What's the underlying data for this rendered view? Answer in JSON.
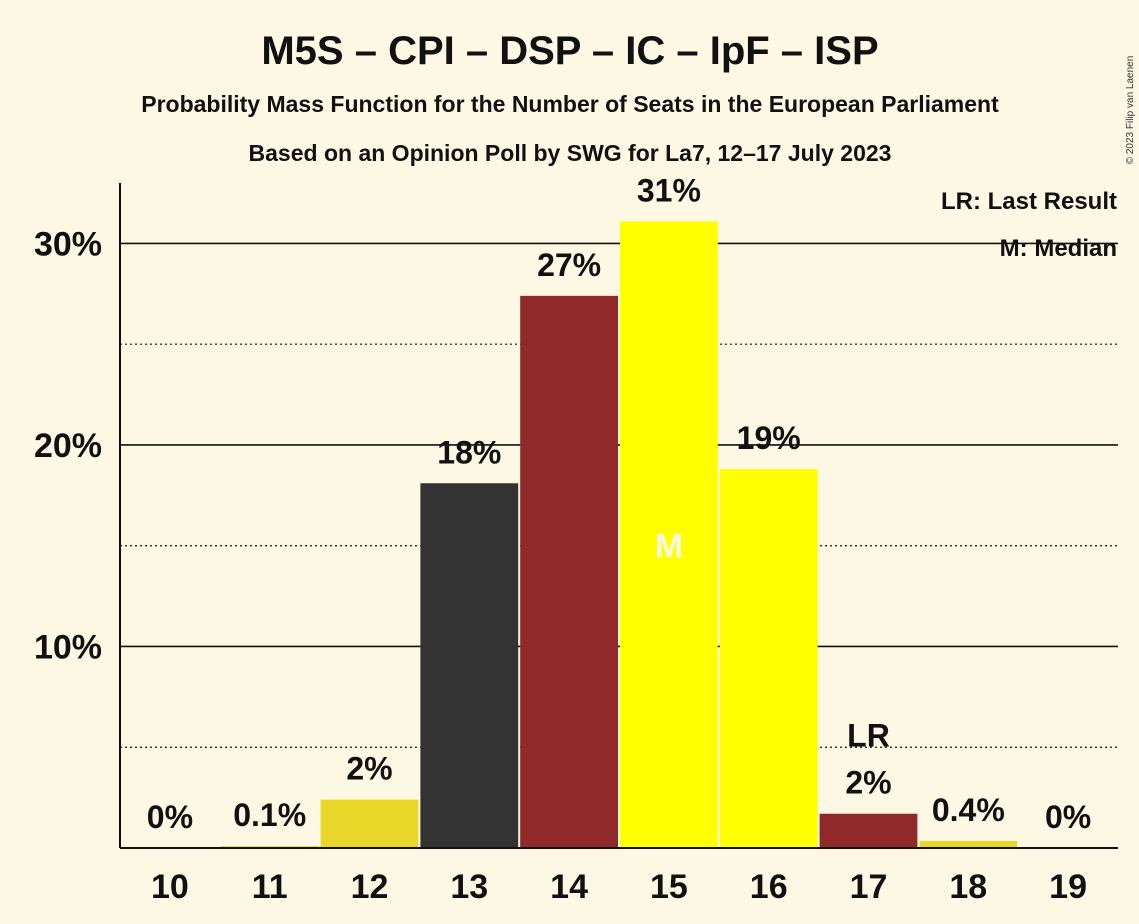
{
  "chart_data": {
    "type": "bar",
    "title": "M5S – CPI – DSP – IC – IpF – ISP",
    "subtitle": "Probability Mass Function for the Number of Seats in the European Parliament",
    "subtitle2": "Based on an Opinion Poll by SWG for La7, 12–17 July 2023",
    "copyright": "© 2023 Filip van Laenen",
    "categories": [
      "10",
      "11",
      "12",
      "13",
      "14",
      "15",
      "16",
      "17",
      "18",
      "19"
    ],
    "values": [
      0,
      0.1,
      2.4,
      18.1,
      27.4,
      31.1,
      18.8,
      1.7,
      0.35,
      0
    ],
    "labels": [
      "0%",
      "0.1%",
      "2%",
      "18%",
      "27%",
      "31%",
      "19%",
      "2%",
      "0.4%",
      "0%"
    ],
    "colors": [
      "#e9d72a",
      "#e9d72a",
      "#e9d72a",
      "#333333",
      "#902a2a",
      "#ffff00",
      "#ffff00",
      "#902a2a",
      "#e9d72a",
      "#e9d72a"
    ],
    "ylim": [
      0,
      33
    ],
    "yticks": [
      10,
      20,
      30
    ],
    "ytick_labels": [
      "10%",
      "20%",
      "30%"
    ],
    "grid": true,
    "median_index": 5,
    "median_label": "M",
    "last_result_index": 7,
    "last_result_label": "LR",
    "legend": [
      "LR: Last Result",
      "M: Median"
    ],
    "legend_position": "top-right"
  }
}
